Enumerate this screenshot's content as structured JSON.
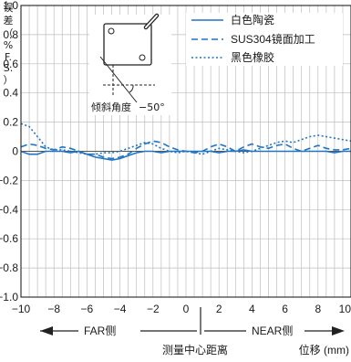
{
  "chart_data": {
    "type": "line",
    "ylabel_chars": [
      "误",
      "差",
      "（",
      "%",
      "F.",
      "S.",
      "）"
    ],
    "xlabel": "测量中心距离",
    "xunit_label": "位移 (mm)",
    "far_label": "FAR侧",
    "near_label": "NEAR侧",
    "inset_label": "倾斜角度",
    "inset_value": "−50°",
    "xlim": [
      -10,
      10
    ],
    "ylim": [
      -1.0,
      1.0
    ],
    "xticks": [
      "−10",
      "−8",
      "−6",
      "−4",
      "−2",
      "0",
      "2",
      "4",
      "6",
      "8",
      "10"
    ],
    "yticks": [
      "1.0",
      "0.8",
      "0.6",
      "0.4",
      "0.2",
      "0",
      "−0.2",
      "−0.4",
      "−0.6",
      "−0.8",
      "−1.0"
    ],
    "grid": true,
    "legend_position": "top-right",
    "series": [
      {
        "name": "白色陶瓷",
        "style": "solid",
        "color": "#1f74c6",
        "x": [
          -10,
          -9.5,
          -9,
          -8.5,
          -8,
          -7.5,
          -7,
          -6.5,
          -6,
          -5.5,
          -5,
          -4.5,
          -4,
          -3.5,
          -3,
          -2.5,
          -2,
          -1.5,
          -1,
          -0.5,
          0,
          0.5,
          1,
          1.5,
          2,
          2.5,
          3,
          3.5,
          4,
          4.5,
          5,
          5.5,
          6,
          6.5,
          7,
          7.5,
          8,
          8.5,
          9,
          9.5,
          10
        ],
        "y": [
          0.0,
          -0.02,
          -0.02,
          0.0,
          0.0,
          0.0,
          -0.01,
          0.0,
          -0.02,
          -0.04,
          -0.05,
          -0.06,
          -0.05,
          -0.03,
          -0.01,
          0.0,
          0.0,
          -0.01,
          0.0,
          0.0,
          0.0,
          0.0,
          0.0,
          0.0,
          -0.01,
          0.0,
          0.0,
          0.01,
          0.0,
          0.0,
          0.0,
          0.0,
          0.0,
          0.0,
          0.0,
          0.0,
          0.0,
          0.0,
          -0.01,
          0.0,
          0.0
        ]
      },
      {
        "name": "SUS304镜面加工",
        "style": "dashed",
        "color": "#1f74c6",
        "x": [
          -10,
          -9.5,
          -9,
          -8.5,
          -8,
          -7.5,
          -7,
          -6.5,
          -6,
          -5.5,
          -5,
          -4.5,
          -4,
          -3.5,
          -3,
          -2.5,
          -2,
          -1.5,
          -1,
          -0.5,
          0,
          0.5,
          1,
          1.5,
          2,
          2.5,
          3,
          3.5,
          4,
          4.5,
          5,
          5.5,
          6,
          6.5,
          7,
          7.5,
          8,
          8.5,
          9,
          9.5,
          10
        ],
        "y": [
          0.03,
          0.05,
          0.04,
          0.02,
          0.01,
          0.03,
          0.02,
          0.0,
          -0.02,
          -0.02,
          -0.04,
          -0.05,
          -0.04,
          -0.02,
          0.02,
          0.05,
          0.07,
          0.06,
          0.03,
          0.01,
          0.0,
          -0.01,
          0.0,
          0.03,
          0.05,
          0.03,
          0.0,
          0.03,
          0.05,
          0.03,
          0.02,
          0.04,
          0.05,
          0.02,
          0.0,
          0.02,
          0.04,
          0.02,
          0.01,
          0.01,
          0.02
        ]
      },
      {
        "name": "黑色橡胶",
        "style": "dotted",
        "color": "#1f74c6",
        "x": [
          -10,
          -9.5,
          -9,
          -8.5,
          -8,
          -7.5,
          -7,
          -6.5,
          -6,
          -5.5,
          -5,
          -4.5,
          -4,
          -3.5,
          -3,
          -2.5,
          -2,
          -1.5,
          -1,
          -0.5,
          0,
          0.5,
          1,
          1.5,
          2,
          2.5,
          3,
          3.5,
          4,
          4.5,
          5,
          5.5,
          6,
          6.5,
          7,
          7.5,
          8,
          8.5,
          9,
          9.5,
          10
        ],
        "y": [
          0.19,
          0.17,
          0.1,
          0.03,
          0.01,
          0.01,
          0.0,
          -0.01,
          -0.02,
          -0.02,
          -0.01,
          -0.01,
          0.0,
          0.02,
          0.04,
          0.06,
          0.05,
          0.02,
          0.0,
          -0.01,
          0.0,
          -0.01,
          -0.02,
          0.0,
          0.02,
          0.01,
          0.0,
          -0.01,
          0.0,
          0.02,
          0.04,
          0.06,
          0.07,
          0.06,
          0.08,
          0.1,
          0.11,
          0.1,
          0.09,
          0.08,
          0.07
        ]
      }
    ]
  }
}
